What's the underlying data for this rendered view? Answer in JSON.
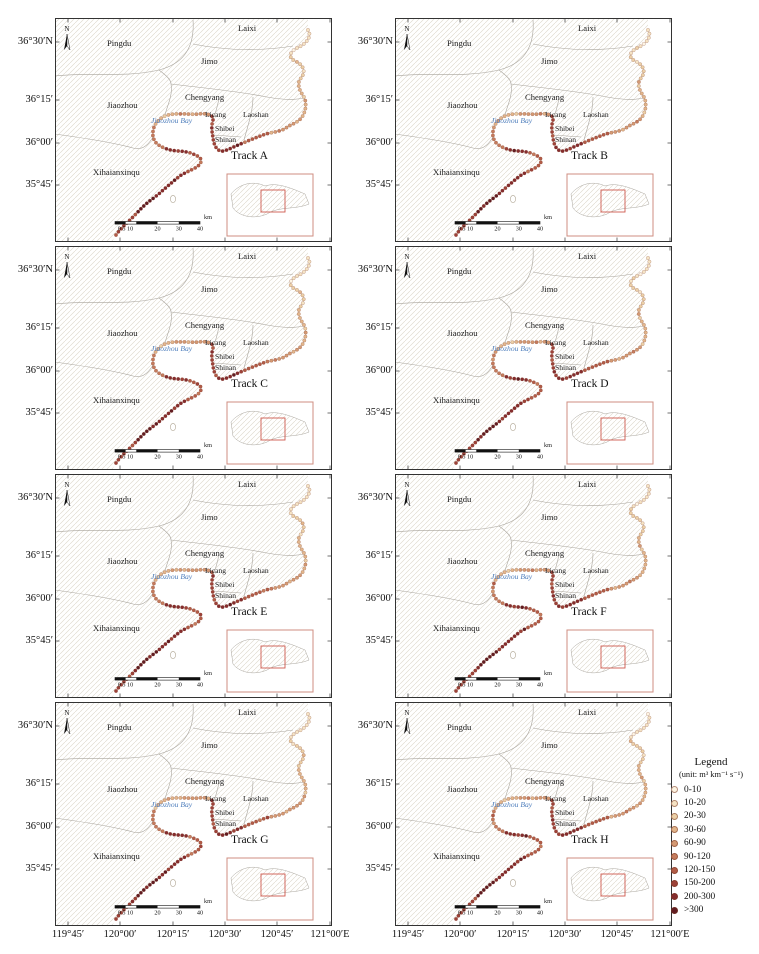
{
  "figure": {
    "panels": [
      {
        "id": "A",
        "label": "Track A"
      },
      {
        "id": "B",
        "label": "Track B"
      },
      {
        "id": "C",
        "label": "Track C"
      },
      {
        "id": "D",
        "label": "Track D"
      },
      {
        "id": "E",
        "label": "Track E"
      },
      {
        "id": "F",
        "label": "Track F"
      },
      {
        "id": "G",
        "label": "Track G"
      },
      {
        "id": "H",
        "label": "Track H"
      }
    ],
    "lat_ticks": [
      "36°30′N",
      "36°15′",
      "36°00′",
      "35°45′"
    ],
    "lon_ticks": [
      "119°45′",
      "120°00′",
      "120°15′",
      "120°30′",
      "120°45′",
      "121°00′E"
    ],
    "regions": {
      "pingdu": "Pingdu",
      "laixi": "Laixi",
      "jimo": "Jimo",
      "jiaozhou": "Jiaozhou",
      "chengyang": "Chengyang",
      "licang": "Licang",
      "laoshan": "Laoshan",
      "shibei": "Shibei",
      "shinan": "Shinan",
      "xihaianxinqu": "Xihaianxinqu",
      "bay": "Jiaozhou Bay"
    },
    "north_label": "N",
    "scalebar": {
      "labels": [
        "0 5 10",
        "20",
        "30",
        "40"
      ],
      "unit": "km"
    },
    "legend": {
      "title": "Legend",
      "unit": "(unit: m³ km⁻¹ s⁻¹)",
      "classes": [
        {
          "label": "0-10",
          "color": "#fdf4e2"
        },
        {
          "label": "10-20",
          "color": "#f5e3c4"
        },
        {
          "label": "20-30",
          "color": "#ecd0a7"
        },
        {
          "label": "30-60",
          "color": "#e2b68c"
        },
        {
          "label": "60-90",
          "color": "#d49a74"
        },
        {
          "label": "90-120",
          "color": "#c57c5e"
        },
        {
          "label": "120-150",
          "color": "#b25c48"
        },
        {
          "label": "150-200",
          "color": "#9d4239"
        },
        {
          "label": "200-300",
          "color": "#852d2e"
        },
        {
          "label": ">300",
          "color": "#611c22"
        }
      ]
    }
  }
}
